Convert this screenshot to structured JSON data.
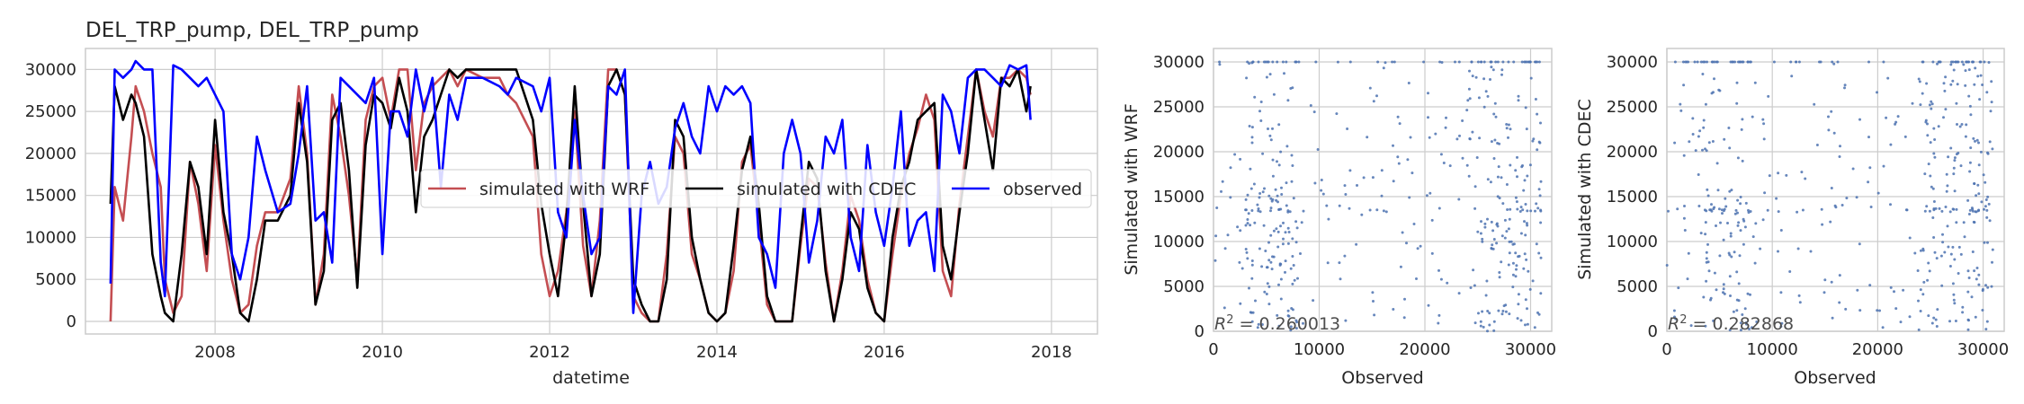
{
  "chart_data": [
    {
      "type": "line",
      "title": "DEL_TRP_pump, DEL_TRP_pump",
      "xlabel": "datetime",
      "ylabel": "",
      "xlim": [
        2006.45,
        2018.55
      ],
      "ylim": [
        -1500,
        32500
      ],
      "xticks": [
        2008,
        2010,
        2012,
        2014,
        2016,
        2018
      ],
      "xtick_labels": [
        "2008",
        "2010",
        "2012",
        "2014",
        "2016",
        "2018"
      ],
      "yticks": [
        0,
        5000,
        10000,
        15000,
        20000,
        25000,
        30000
      ],
      "ytick_labels": [
        "0",
        "5000",
        "10000",
        "15000",
        "20000",
        "25000",
        "30000"
      ],
      "grid": true,
      "legend": "center-right",
      "series": [
        {
          "name": "simulated with WRF",
          "color": "#c44e52",
          "x": [
            2006.75,
            2006.8,
            2006.9,
            2007.0,
            2007.05,
            2007.15,
            2007.25,
            2007.35,
            2007.4,
            2007.5,
            2007.6,
            2007.7,
            2007.8,
            2007.9,
            2008.0,
            2008.1,
            2008.2,
            2008.3,
            2008.4,
            2008.5,
            2008.6,
            2008.75,
            2008.9,
            2009.0,
            2009.1,
            2009.2,
            2009.3,
            2009.4,
            2009.5,
            2009.6,
            2009.7,
            2009.8,
            2009.9,
            2010.0,
            2010.1,
            2010.2,
            2010.3,
            2010.4,
            2010.5,
            2010.6,
            2010.7,
            2010.8,
            2010.9,
            2011.0,
            2011.2,
            2011.4,
            2011.5,
            2011.6,
            2011.8,
            2011.9,
            2012.0,
            2012.1,
            2012.2,
            2012.3,
            2012.4,
            2012.5,
            2012.6,
            2012.7,
            2012.8,
            2012.9,
            2013.0,
            2013.1,
            2013.2,
            2013.3,
            2013.4,
            2013.5,
            2013.6,
            2013.7,
            2013.8,
            2013.9,
            2014.0,
            2014.1,
            2014.2,
            2014.3,
            2014.4,
            2014.5,
            2014.6,
            2014.7,
            2014.8,
            2014.9,
            2015.0,
            2015.1,
            2015.2,
            2015.3,
            2015.4,
            2015.5,
            2015.6,
            2015.7,
            2015.8,
            2015.9,
            2016.0,
            2016.1,
            2016.2,
            2016.3,
            2016.4,
            2016.5,
            2016.6,
            2016.7,
            2016.8,
            2016.9,
            2017.0,
            2017.1,
            2017.2,
            2017.3,
            2017.4,
            2017.5,
            2017.6,
            2017.7,
            2017.75
          ],
          "y": [
            0,
            16000,
            12000,
            22000,
            28000,
            25000,
            20000,
            16000,
            5000,
            1000,
            3000,
            19000,
            14000,
            6000,
            21000,
            12000,
            5000,
            1000,
            2000,
            9000,
            13000,
            13000,
            17000,
            28000,
            20000,
            2000,
            8000,
            27000,
            22000,
            15000,
            5000,
            24000,
            28000,
            29000,
            24000,
            30000,
            30000,
            18000,
            26000,
            28000,
            29000,
            30000,
            28000,
            30000,
            29000,
            29000,
            27000,
            26000,
            22000,
            8000,
            3000,
            6000,
            13000,
            25000,
            9000,
            3000,
            12000,
            30000,
            30000,
            27000,
            3000,
            1000,
            0,
            0,
            8000,
            22000,
            20000,
            8000,
            5000,
            1000,
            0,
            1000,
            6000,
            19000,
            21000,
            12000,
            2000,
            0,
            0,
            0,
            9000,
            17000,
            16000,
            7000,
            0,
            6000,
            15000,
            12000,
            5000,
            1000,
            0,
            8000,
            15000,
            20000,
            23000,
            27000,
            24000,
            6000,
            3000,
            14000,
            22000,
            30000,
            25000,
            22000,
            29000,
            29000,
            30000,
            29000,
            27000
          ]
        },
        {
          "name": "simulated with CDEC",
          "color": "#000000",
          "x": [
            2006.75,
            2006.8,
            2006.9,
            2007.0,
            2007.05,
            2007.15,
            2007.25,
            2007.35,
            2007.4,
            2007.5,
            2007.6,
            2007.7,
            2007.8,
            2007.9,
            2008.0,
            2008.1,
            2008.2,
            2008.3,
            2008.4,
            2008.5,
            2008.6,
            2008.75,
            2008.9,
            2009.0,
            2009.1,
            2009.2,
            2009.3,
            2009.4,
            2009.5,
            2009.6,
            2009.7,
            2009.8,
            2009.9,
            2010.0,
            2010.1,
            2010.2,
            2010.3,
            2010.4,
            2010.5,
            2010.6,
            2010.7,
            2010.8,
            2010.9,
            2011.0,
            2011.2,
            2011.4,
            2011.5,
            2011.6,
            2011.8,
            2011.9,
            2012.0,
            2012.1,
            2012.2,
            2012.3,
            2012.4,
            2012.5,
            2012.6,
            2012.7,
            2012.8,
            2012.9,
            2013.0,
            2013.1,
            2013.2,
            2013.3,
            2013.4,
            2013.5,
            2013.6,
            2013.7,
            2013.8,
            2013.9,
            2014.0,
            2014.1,
            2014.2,
            2014.3,
            2014.4,
            2014.5,
            2014.6,
            2014.7,
            2014.8,
            2014.9,
            2015.0,
            2015.1,
            2015.2,
            2015.3,
            2015.4,
            2015.5,
            2015.6,
            2015.7,
            2015.8,
            2015.9,
            2016.0,
            2016.1,
            2016.2,
            2016.3,
            2016.4,
            2016.5,
            2016.6,
            2016.7,
            2016.8,
            2016.9,
            2017.0,
            2017.1,
            2017.2,
            2017.3,
            2017.4,
            2017.5,
            2017.6,
            2017.7,
            2017.75
          ],
          "y": [
            14000,
            28000,
            24000,
            27000,
            26000,
            22000,
            8000,
            3000,
            1000,
            0,
            8000,
            19000,
            16000,
            8000,
            24000,
            13000,
            8000,
            1000,
            0,
            5000,
            12000,
            12000,
            15000,
            26000,
            19000,
            2000,
            6000,
            24000,
            26000,
            18000,
            4000,
            21000,
            27000,
            26000,
            23000,
            29000,
            25000,
            13000,
            22000,
            24000,
            27000,
            30000,
            29000,
            30000,
            30000,
            30000,
            30000,
            30000,
            24000,
            14000,
            8000,
            3000,
            12000,
            28000,
            14000,
            3000,
            8000,
            28000,
            30000,
            27000,
            5000,
            2000,
            0,
            0,
            5000,
            24000,
            22000,
            10000,
            5000,
            1000,
            0,
            1000,
            9000,
            18000,
            22000,
            14000,
            3000,
            0,
            0,
            0,
            10000,
            19000,
            17000,
            6000,
            0,
            5000,
            13000,
            11000,
            4000,
            1000,
            0,
            10000,
            16000,
            19000,
            24000,
            25000,
            26000,
            9000,
            5000,
            13000,
            20000,
            30000,
            24000,
            18000,
            29000,
            28000,
            30000,
            25000,
            28000
          ]
        },
        {
          "name": "observed",
          "color": "#0000ff",
          "x": [
            2006.75,
            2006.8,
            2006.9,
            2007.0,
            2007.05,
            2007.15,
            2007.25,
            2007.35,
            2007.4,
            2007.5,
            2007.6,
            2007.7,
            2007.8,
            2007.9,
            2008.0,
            2008.1,
            2008.2,
            2008.3,
            2008.4,
            2008.5,
            2008.6,
            2008.75,
            2008.9,
            2009.0,
            2009.1,
            2009.2,
            2009.3,
            2009.4,
            2009.5,
            2009.6,
            2009.7,
            2009.8,
            2009.9,
            2010.0,
            2010.1,
            2010.2,
            2010.3,
            2010.4,
            2010.5,
            2010.6,
            2010.7,
            2010.8,
            2010.9,
            2011.0,
            2011.2,
            2011.4,
            2011.5,
            2011.6,
            2011.8,
            2011.9,
            2012.0,
            2012.1,
            2012.2,
            2012.3,
            2012.4,
            2012.5,
            2012.6,
            2012.7,
            2012.8,
            2012.9,
            2013.0,
            2013.1,
            2013.2,
            2013.3,
            2013.4,
            2013.5,
            2013.6,
            2013.7,
            2013.8,
            2013.9,
            2014.0,
            2014.1,
            2014.2,
            2014.3,
            2014.4,
            2014.5,
            2014.6,
            2014.7,
            2014.8,
            2014.9,
            2015.0,
            2015.1,
            2015.2,
            2015.3,
            2015.4,
            2015.5,
            2015.6,
            2015.7,
            2015.8,
            2015.9,
            2016.0,
            2016.1,
            2016.2,
            2016.3,
            2016.4,
            2016.5,
            2016.6,
            2016.7,
            2016.8,
            2016.9,
            2017.0,
            2017.1,
            2017.2,
            2017.3,
            2017.4,
            2017.5,
            2017.6,
            2017.7,
            2017.75
          ],
          "y": [
            4500,
            30000,
            29000,
            30000,
            31000,
            30000,
            30000,
            7000,
            3000,
            30500,
            30000,
            29000,
            28000,
            29000,
            27000,
            25000,
            8000,
            5000,
            10000,
            22000,
            18000,
            13000,
            14000,
            20000,
            28000,
            12000,
            13000,
            7000,
            29000,
            28000,
            27000,
            26000,
            29000,
            8000,
            25000,
            25000,
            22000,
            30000,
            25000,
            29000,
            16000,
            27000,
            24000,
            29000,
            29000,
            28000,
            27000,
            29000,
            28000,
            25000,
            29000,
            13000,
            10000,
            24000,
            15000,
            8000,
            10000,
            28000,
            27000,
            30000,
            1000,
            15000,
            19000,
            14000,
            16000,
            23000,
            26000,
            22000,
            20000,
            28000,
            25000,
            28000,
            27000,
            28000,
            26000,
            10000,
            8000,
            4000,
            20000,
            24000,
            20000,
            7000,
            12000,
            22000,
            20000,
            24000,
            10000,
            6000,
            21000,
            13000,
            9000,
            16000,
            25000,
            9000,
            12000,
            13000,
            6000,
            27000,
            25000,
            20000,
            29000,
            30000,
            30000,
            29000,
            28000,
            30500,
            30000,
            30500,
            24000
          ]
        }
      ]
    },
    {
      "type": "scatter",
      "title": "",
      "xlabel": "Observed",
      "ylabel": "Simulated with WRF",
      "xlim": [
        0,
        32000
      ],
      "ylim": [
        0,
        31500
      ],
      "xticks": [
        0,
        10000,
        20000,
        30000
      ],
      "xtick_labels": [
        "0",
        "10000",
        "20000",
        "30000"
      ],
      "yticks": [
        0,
        5000,
        10000,
        15000,
        20000,
        25000,
        30000
      ],
      "ytick_labels": [
        "0",
        "5000",
        "10000",
        "15000",
        "20000",
        "25000",
        "30000"
      ],
      "grid": true,
      "color": "#4c72b0",
      "annotation": "R^2 = 0.260013",
      "annotation_prefix": "R",
      "annotation_exp": "2",
      "annotation_suffix": " = 0.260013",
      "seed": 11,
      "n_points": 500
    },
    {
      "type": "scatter",
      "title": "",
      "xlabel": "Observed",
      "ylabel": "Simulated with CDEC",
      "xlim": [
        0,
        32000
      ],
      "ylim": [
        0,
        31500
      ],
      "xticks": [
        0,
        10000,
        20000,
        30000
      ],
      "xtick_labels": [
        "0",
        "10000",
        "20000",
        "30000"
      ],
      "yticks": [
        0,
        5000,
        10000,
        15000,
        20000,
        25000,
        30000
      ],
      "ytick_labels": [
        "0",
        "5000",
        "10000",
        "15000",
        "20000",
        "25000",
        "30000"
      ],
      "grid": true,
      "color": "#4c72b0",
      "annotation": "R^2 = 0.282868",
      "annotation_prefix": "R",
      "annotation_exp": "2",
      "annotation_suffix": " = 0.282868",
      "seed": 23,
      "n_points": 500
    }
  ]
}
